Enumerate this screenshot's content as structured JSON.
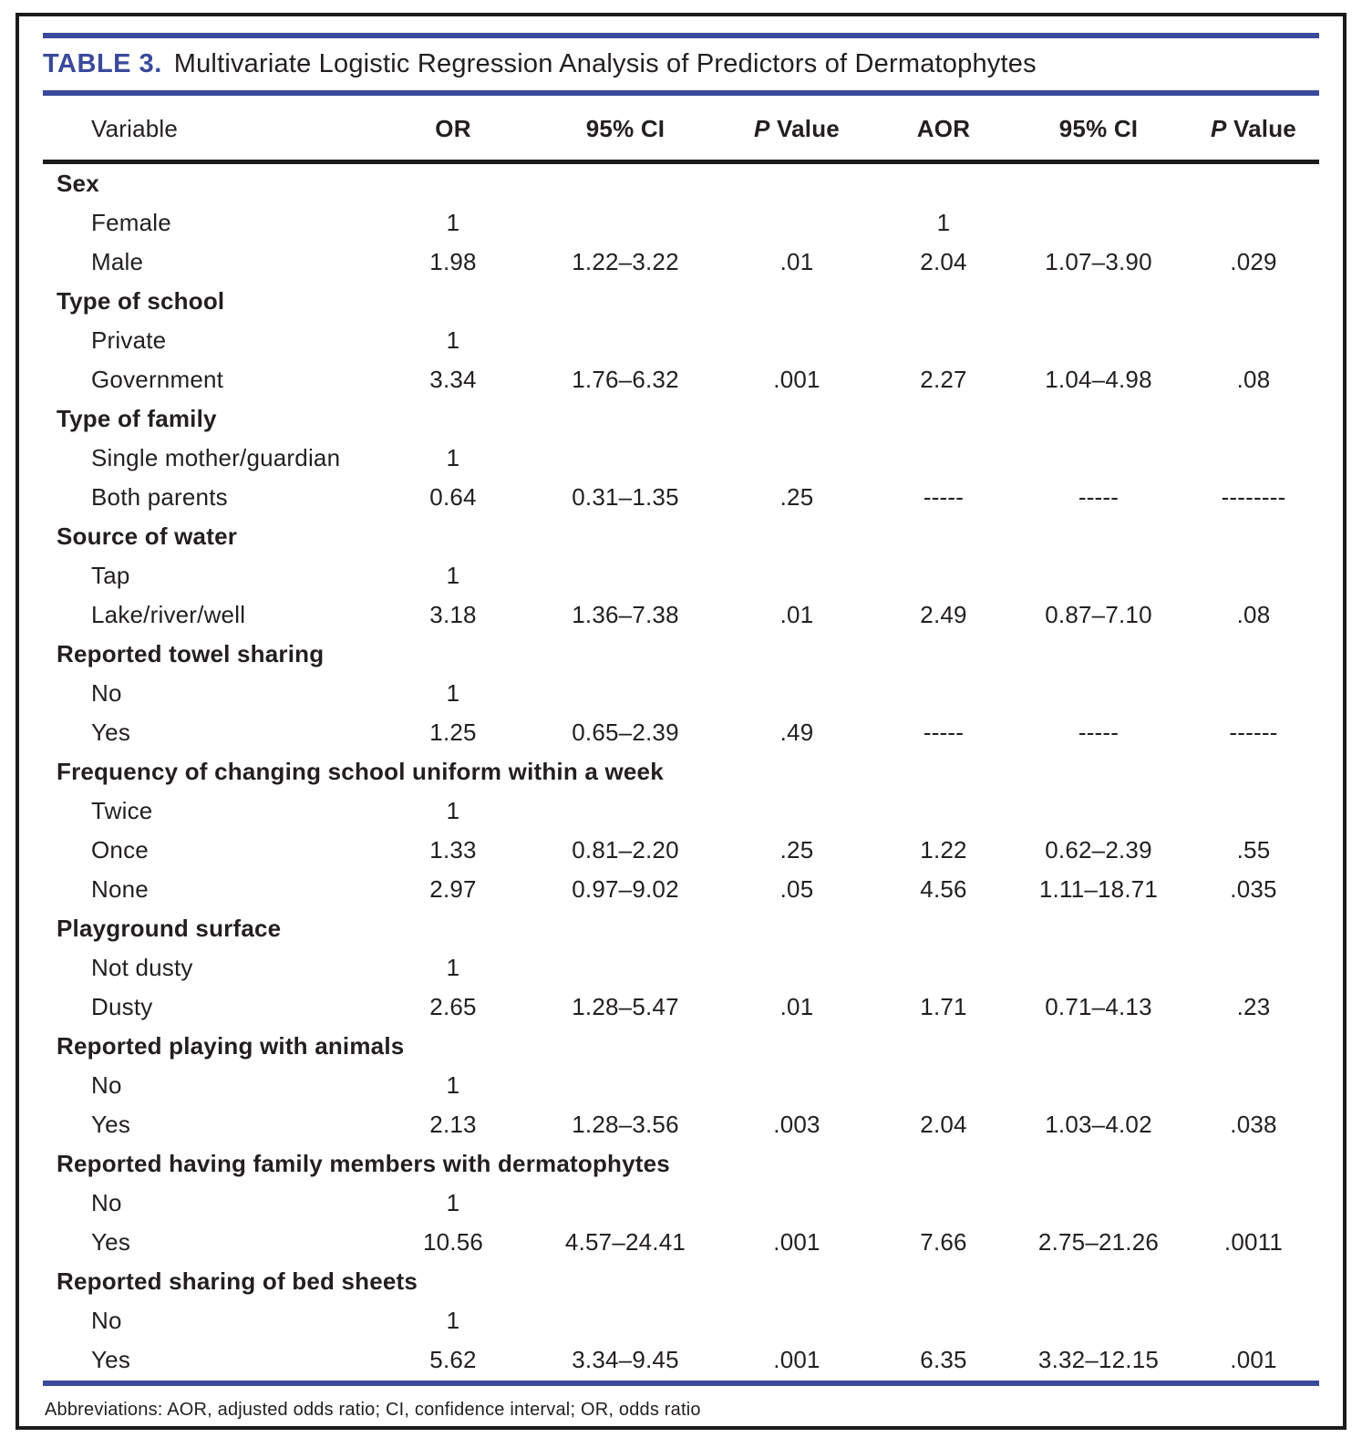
{
  "title": {
    "label": "TABLE 3.",
    "text": "Multivariate Logistic Regression Analysis of Predictors of Dermatophytes"
  },
  "table": {
    "columns": {
      "variable": "Variable",
      "or": "OR",
      "ci": "95% CI",
      "p": "P",
      "value": "Value",
      "aor": "AOR"
    },
    "groups": [
      {
        "name": "Sex",
        "rows": [
          [
            "Female",
            "1",
            "",
            "",
            "1",
            "",
            ""
          ],
          [
            "Male",
            "1.98",
            "1.22–3.22",
            ".01",
            "2.04",
            "1.07–3.90",
            ".029"
          ]
        ]
      },
      {
        "name": "Type of school",
        "rows": [
          [
            "Private",
            "1",
            "",
            "",
            "",
            "",
            ""
          ],
          [
            "Government",
            "3.34",
            "1.76–6.32",
            ".001",
            "2.27",
            "1.04–4.98",
            ".08"
          ]
        ]
      },
      {
        "name": "Type of family",
        "rows": [
          [
            "Single mother/guardian",
            "1",
            "",
            "",
            "",
            "",
            ""
          ],
          [
            "Both parents",
            "0.64",
            "0.31–1.35",
            ".25",
            "-----",
            "-----",
            "--------"
          ]
        ]
      },
      {
        "name": "Source of water",
        "rows": [
          [
            "Tap",
            "1",
            "",
            "",
            "",
            "",
            ""
          ],
          [
            "Lake/river/well",
            "3.18",
            "1.36–7.38",
            ".01",
            "2.49",
            "0.87–7.10",
            ".08"
          ]
        ]
      },
      {
        "name": "Reported towel sharing",
        "rows": [
          [
            "No",
            "1",
            "",
            "",
            "",
            "",
            ""
          ],
          [
            "Yes",
            "1.25",
            "0.65–2.39",
            ".49",
            "-----",
            "-----",
            "------"
          ]
        ]
      },
      {
        "name": "Frequency of changing school uniform within a week",
        "rows": [
          [
            "Twice",
            "1",
            "",
            "",
            "",
            "",
            ""
          ],
          [
            "Once",
            "1.33",
            "0.81–2.20",
            ".25",
            "1.22",
            "0.62–2.39",
            ".55"
          ],
          [
            "None",
            "2.97",
            "0.97–9.02",
            ".05",
            "4.56",
            "1.11–18.71",
            ".035"
          ]
        ]
      },
      {
        "name": "Playground surface",
        "rows": [
          [
            "Not dusty",
            "1",
            "",
            "",
            "",
            "",
            ""
          ],
          [
            "Dusty",
            "2.65",
            "1.28–5.47",
            ".01",
            "1.71",
            "0.71–4.13",
            ".23"
          ]
        ]
      },
      {
        "name": "Reported playing with animals",
        "rows": [
          [
            "No",
            "1",
            "",
            "",
            "",
            "",
            ""
          ],
          [
            "Yes",
            "2.13",
            "1.28–3.56",
            ".003",
            "2.04",
            "1.03–4.02",
            ".038"
          ]
        ]
      },
      {
        "name": "Reported having family members with dermatophytes",
        "rows": [
          [
            "No",
            "1",
            "",
            "",
            "",
            "",
            ""
          ],
          [
            "Yes",
            "10.56",
            "4.57–24.41",
            ".001",
            "7.66",
            "2.75–21.26",
            ".0011"
          ]
        ]
      },
      {
        "name": "Reported sharing of bed sheets",
        "rows": [
          [
            "No",
            "1",
            "",
            "",
            "",
            "",
            ""
          ],
          [
            "Yes",
            "5.62",
            "3.34–9.45",
            ".001",
            "6.35",
            "3.32–12.15",
            ".001"
          ]
        ]
      }
    ]
  },
  "footnote": "Abbreviations: AOR, adjusted odds ratio; CI, confidence interval; OR, odds ratio",
  "colors": {
    "accent_blue": "#3a4a9b",
    "text_black": "#231f20",
    "border_black": "#1b1b1b"
  }
}
